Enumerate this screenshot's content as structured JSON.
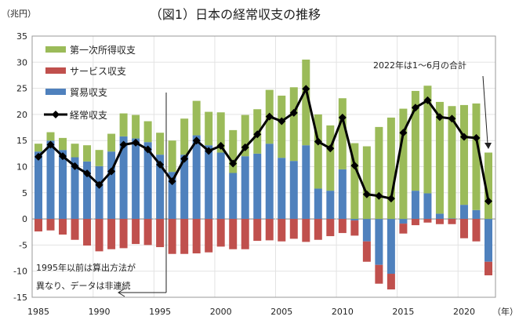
{
  "chart_data": {
    "type": "bar",
    "title": "（図1）日本の経常収支の推移",
    "ylabel": "（兆円）",
    "xlabel": "（年）",
    "ylim": [
      -15,
      35
    ],
    "yticks": [
      -15,
      -10,
      -5,
      0,
      5,
      10,
      15,
      20,
      25,
      30,
      35
    ],
    "xticks": [
      1985,
      1990,
      1995,
      2000,
      2005,
      2010,
      2015,
      2020
    ],
    "grid": true,
    "legend_position": "top-left",
    "categories": [
      1985,
      1986,
      1987,
      1988,
      1989,
      1990,
      1991,
      1992,
      1993,
      1994,
      1995,
      1996,
      1997,
      1998,
      1999,
      2000,
      2001,
      2002,
      2003,
      2004,
      2005,
      2006,
      2007,
      2008,
      2009,
      2010,
      2011,
      2012,
      2013,
      2014,
      2015,
      2016,
      2017,
      2018,
      2019,
      2020,
      2021,
      2022
    ],
    "series": [
      {
        "name": "第一次所得収支",
        "kind": "bar",
        "color": "#9bbb59",
        "values": [
          1.5,
          1.6,
          2.3,
          2.6,
          3.1,
          3.1,
          3.4,
          4.4,
          4.5,
          4.0,
          4.2,
          6.0,
          6.9,
          6.6,
          6.4,
          7.7,
          8.2,
          7.9,
          8.5,
          10.3,
          11.9,
          14.1,
          16.4,
          14.2,
          12.5,
          13.6,
          14.5,
          13.9,
          17.6,
          19.4,
          21.1,
          19.1,
          20.6,
          21.4,
          21.5,
          19.1,
          20.4,
          12.7
        ]
      },
      {
        "name": "サービス収支",
        "kind": "bar",
        "color": "#c0504d",
        "values": [
          -2.4,
          -2.2,
          -3.0,
          -4.0,
          -5.1,
          -6.2,
          -5.8,
          -5.6,
          -4.8,
          -5.0,
          -5.4,
          -6.7,
          -6.7,
          -6.6,
          -6.4,
          -5.3,
          -5.8,
          -5.8,
          -4.2,
          -4.1,
          -4.3,
          -3.8,
          -4.4,
          -4.0,
          -3.3,
          -2.7,
          -2.9,
          -3.9,
          -3.6,
          -3.0,
          -1.9,
          -1.2,
          -0.7,
          -1.0,
          -1.0,
          -3.7,
          -4.3,
          -2.6
        ]
      },
      {
        "name": "貿易収支",
        "kind": "bar",
        "color": "#4f81bd",
        "values": [
          12.9,
          15.0,
          13.2,
          11.8,
          11.0,
          10.1,
          12.9,
          15.8,
          15.4,
          14.7,
          12.3,
          9.0,
          12.3,
          16.0,
          14.1,
          12.7,
          8.8,
          12.0,
          12.5,
          14.4,
          11.7,
          11.1,
          14.1,
          5.8,
          5.4,
          9.5,
          -0.3,
          -4.3,
          -8.8,
          -10.5,
          -0.9,
          5.4,
          4.9,
          1.0,
          0.1,
          2.7,
          1.7,
          -8.2
        ]
      },
      {
        "name": "経常収支",
        "kind": "line",
        "color": "#000000",
        "values": [
          11.9,
          14.2,
          12.0,
          10.1,
          8.7,
          6.5,
          9.1,
          14.2,
          14.6,
          13.3,
          10.4,
          7.2,
          11.5,
          15.0,
          13.0,
          14.0,
          10.6,
          13.7,
          16.2,
          19.6,
          18.7,
          20.3,
          24.9,
          14.8,
          13.5,
          19.4,
          10.2,
          4.7,
          4.4,
          3.9,
          16.5,
          21.3,
          22.7,
          19.5,
          19.2,
          15.7,
          15.5,
          3.4
        ]
      }
    ],
    "annotations": [
      {
        "text_lines": [
          "1995年以前は算出方法が",
          "異なり、データは非連続"
        ]
      },
      {
        "text": "2022年は1～6月の合計"
      }
    ]
  }
}
